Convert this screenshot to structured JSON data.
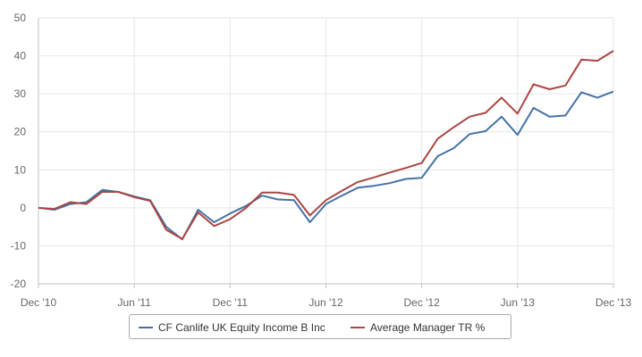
{
  "chart_data": {
    "type": "line",
    "x": [
      "Dec '10",
      "Jan '11",
      "Feb '11",
      "Mar '11",
      "Apr '11",
      "May '11",
      "Jun '11",
      "Jul '11",
      "Aug '11",
      "Sep '11",
      "Oct '11",
      "Nov '11",
      "Dec '11",
      "Jan '12",
      "Feb '12",
      "Mar '12",
      "Apr '12",
      "May '12",
      "Jun '12",
      "Jul '12",
      "Aug '12",
      "Sep '12",
      "Oct '12",
      "Nov '12",
      "Dec '12",
      "Jan '13",
      "Feb '13",
      "Mar '13",
      "Apr '13",
      "May '13",
      "Jun '13",
      "Jul '13",
      "Aug '13",
      "Sep '13",
      "Oct '13",
      "Nov '13",
      "Dec '13"
    ],
    "x_ticks": [
      "Dec '10",
      "Jun '11",
      "Dec '11",
      "Jun '12",
      "Dec '12",
      "Jun '13",
      "Dec '13"
    ],
    "y_ticks": [
      50,
      40,
      30,
      20,
      10,
      0,
      -10,
      -20
    ],
    "ylim": [
      -20,
      50
    ],
    "grid": true,
    "legend_position": "bottom",
    "series": [
      {
        "name": "CF Canlife UK Equity Income B Inc",
        "color": "#4572a7",
        "values": [
          0,
          -0.5,
          1,
          1.5,
          4.7,
          4.2,
          3,
          2,
          -5,
          -8.3,
          -0.5,
          -3.8,
          -1.5,
          0.5,
          3.2,
          2.2,
          2,
          -3.8,
          1,
          3.2,
          5.3,
          5.8,
          6.5,
          7.6,
          7.9,
          13.6,
          15.7,
          19.4,
          20.2,
          24,
          19.2,
          26.3,
          24,
          24.3,
          30.4,
          29,
          30.6
        ]
      },
      {
        "name": "Average Manager TR %",
        "color": "#aa4643",
        "values": [
          0,
          -0.3,
          1.5,
          1,
          4.2,
          4.2,
          2.8,
          1.8,
          -5.8,
          -8.2,
          -1.2,
          -4.8,
          -3,
          0,
          4,
          4,
          3.4,
          -2,
          2,
          4.5,
          6.8,
          8,
          9.3,
          10.5,
          11.8,
          18.2,
          21.2,
          24,
          25,
          29,
          24.8,
          32.5,
          31.2,
          32.2,
          39,
          38.7,
          41.3
        ]
      }
    ]
  }
}
